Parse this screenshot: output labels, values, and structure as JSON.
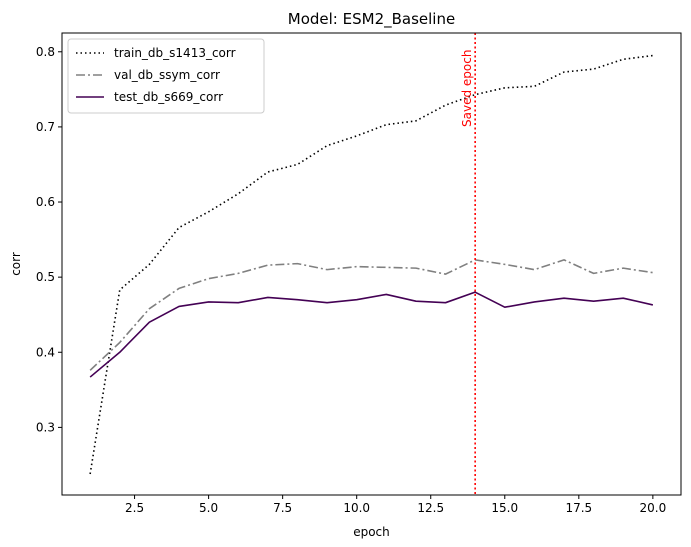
{
  "chart_data": {
    "type": "line",
    "title": "Model: ESM2_Baseline",
    "xlabel": "epoch",
    "ylabel": "corr",
    "xlim": [
      0.05,
      20.95
    ],
    "ylim": [
      0.21,
      0.825
    ],
    "x_ticks": [
      2.5,
      5.0,
      7.5,
      10.0,
      12.5,
      15.0,
      17.5,
      20.0
    ],
    "x_tick_labels": [
      "2.5",
      "5.0",
      "7.5",
      "10.0",
      "12.5",
      "15.0",
      "17.5",
      "20.0"
    ],
    "y_ticks": [
      0.3,
      0.4,
      0.5,
      0.6,
      0.7,
      0.8
    ],
    "y_tick_labels": [
      "0.3",
      "0.4",
      "0.5",
      "0.6",
      "0.7",
      "0.8"
    ],
    "grid": false,
    "legend_position": "top-left",
    "x": [
      1,
      2,
      3,
      4,
      5,
      6,
      7,
      8,
      9,
      10,
      11,
      12,
      13,
      14,
      15,
      16,
      17,
      18,
      19,
      20
    ],
    "series": [
      {
        "name": "train_db_s1413_corr",
        "color": "#000000",
        "dash": "dotted",
        "values": [
          0.238,
          0.483,
          0.517,
          0.566,
          0.587,
          0.611,
          0.64,
          0.65,
          0.675,
          0.688,
          0.703,
          0.708,
          0.729,
          0.743,
          0.752,
          0.754,
          0.773,
          0.777,
          0.79,
          0.795
        ]
      },
      {
        "name": "val_db_ssym_corr",
        "color": "#808080",
        "dash": "dashdot",
        "values": [
          0.376,
          0.413,
          0.458,
          0.485,
          0.498,
          0.505,
          0.516,
          0.518,
          0.51,
          0.514,
          0.513,
          0.512,
          0.504,
          0.523,
          0.517,
          0.51,
          0.523,
          0.505,
          0.512,
          0.506
        ]
      },
      {
        "name": "test_db_s669_corr",
        "color": "#440154",
        "dash": "solid",
        "values": [
          0.367,
          0.4,
          0.44,
          0.461,
          0.467,
          0.466,
          0.473,
          0.47,
          0.466,
          0.47,
          0.477,
          0.468,
          0.466,
          0.48,
          0.46,
          0.467,
          0.472,
          0.468,
          0.472,
          0.463
        ]
      }
    ],
    "annotations": [
      {
        "text": "Saved epoch",
        "x": 14,
        "color": "#ff0000",
        "style": "vertical dotted line"
      }
    ]
  }
}
